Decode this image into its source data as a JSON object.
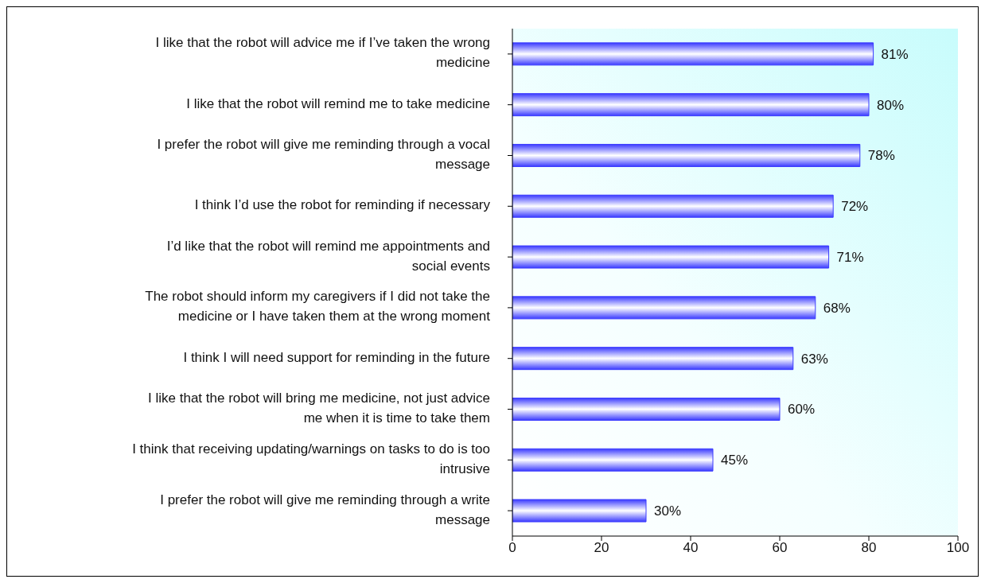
{
  "chart_data": {
    "type": "bar",
    "orientation": "horizontal",
    "categories": [
      "I like that the robot will advice me if I’ve taken the wrong\nmedicine",
      "I like that the robot will remind me to take medicine",
      "I prefer the robot will give me reminding through a vocal\nmessage",
      "I think I’d use the robot for reminding if necessary",
      "I’d like that the robot will remind me appointments and\nsocial events",
      "The robot should inform my caregivers if I did not take the\nmedicine or I have taken them at the wrong moment",
      "I think I will need support for reminding in the future",
      "I like that the robot will bring me medicine, not just advice\nme when it is time to take them",
      "I think that receiving updating/warnings on tasks to do is too\nintrusive",
      "I prefer the robot will give me reminding through a write\nmessage"
    ],
    "values": [
      81,
      80,
      78,
      72,
      71,
      68,
      63,
      60,
      45,
      30
    ],
    "value_labels": [
      "81%",
      "80%",
      "78%",
      "72%",
      "71%",
      "68%",
      "63%",
      "60%",
      "45%",
      "30%"
    ],
    "color": "#3a3aff",
    "xlim": [
      0,
      100
    ],
    "xticks": [
      0,
      20,
      40,
      60,
      80,
      100
    ]
  }
}
